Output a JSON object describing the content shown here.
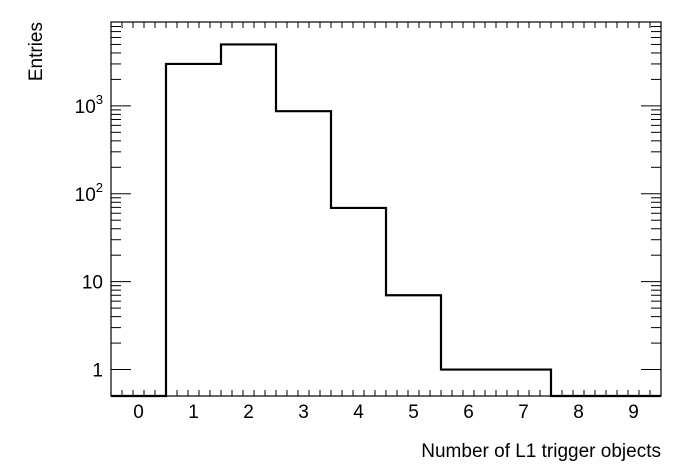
{
  "chart_data": {
    "type": "bar",
    "style": "step-histogram",
    "xlabel": "Number of L1 trigger objects",
    "ylabel": "Entries",
    "x_tick_labels": [
      "0",
      "1",
      "2",
      "3",
      "4",
      "5",
      "6",
      "7",
      "8",
      "9"
    ],
    "y_tick_labels": [
      {
        "value": 1,
        "base": "1",
        "exp": ""
      },
      {
        "value": 10,
        "base": "10",
        "exp": ""
      },
      {
        "value": 100,
        "base": "10",
        "exp": "2"
      },
      {
        "value": 1000,
        "base": "10",
        "exp": "3"
      }
    ],
    "xlim": [
      -0.5,
      9.5
    ],
    "ylim": [
      0.5,
      9000
    ],
    "y_scale": "log",
    "grid": false,
    "legend": "none",
    "line_color": "#000000",
    "bins": [
      {
        "x": 0,
        "value": 0
      },
      {
        "x": 1,
        "value": 3000
      },
      {
        "x": 2,
        "value": 5000
      },
      {
        "x": 3,
        "value": 870
      },
      {
        "x": 4,
        "value": 69
      },
      {
        "x": 5,
        "value": 7
      },
      {
        "x": 6,
        "value": 1
      },
      {
        "x": 7,
        "value": 1
      },
      {
        "x": 8,
        "value": 0
      },
      {
        "x": 9,
        "value": 0
      }
    ]
  }
}
